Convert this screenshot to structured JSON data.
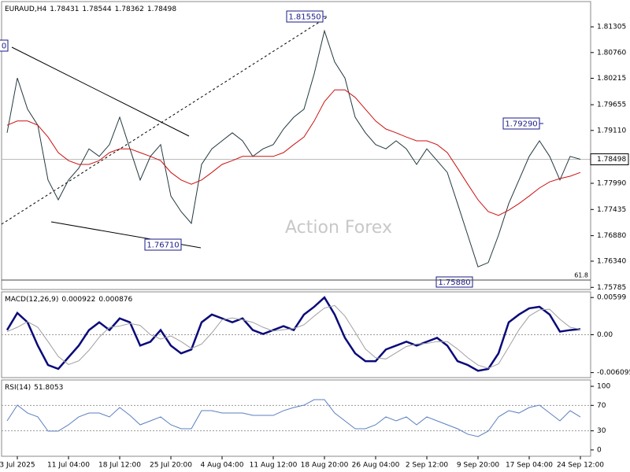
{
  "watermark": "Action Forex",
  "chart_data": [
    {
      "type": "line",
      "title": "EURAUD,H4",
      "ohlc": [
        1.78431,
        1.78544,
        1.78362,
        1.78498
      ],
      "categories": [
        null,
        "3 Jul 2025",
        null,
        null,
        null,
        null,
        "11 Jul 04:00",
        null,
        null,
        null,
        null,
        "18 Jul 12:00",
        null,
        null,
        null,
        null,
        "25 Jul 20:00",
        null,
        null,
        null,
        null,
        "4 Aug 04:00",
        null,
        null,
        null,
        null,
        "11 Aug 12:00",
        null,
        null,
        null,
        null,
        "18 Aug 20:00",
        null,
        null,
        null,
        null,
        "26 Aug 04:00",
        null,
        null,
        null,
        null,
        "2 Sep 12:00",
        null,
        null,
        null,
        null,
        "9 Sep 20:00",
        null,
        null,
        null,
        null,
        "17 Sep 04:00",
        null,
        null,
        null,
        null,
        "24 Sep 12:00"
      ],
      "series": [
        {
          "color": "#23393f",
          "values": [
            1.7906,
            1.8022,
            1.7956,
            1.7922,
            1.7806,
            1.7764,
            1.7806,
            1.7831,
            1.7872,
            1.7856,
            1.7881,
            1.7939,
            1.7872,
            1.7806,
            1.7856,
            1.7881,
            1.7772,
            1.7739,
            1.7714,
            1.7839,
            1.7872,
            1.7889,
            1.7906,
            1.7889,
            1.7856,
            1.7872,
            1.7881,
            1.7914,
            1.7939,
            1.7956,
            1.8031,
            1.8122,
            1.8056,
            1.8022,
            1.7939,
            1.7906,
            1.7881,
            1.7872,
            1.7889,
            1.7872,
            1.7839,
            1.7872,
            1.7847,
            1.7822,
            1.7756,
            1.7689,
            1.7622,
            1.7631,
            1.7689,
            1.7756,
            1.7806,
            1.7856,
            1.7889,
            1.7856,
            1.7806,
            1.7856,
            1.78498
          ]
        },
        {
          "color": "#cc1111",
          "values": [
            1.7922,
            1.7931,
            1.7931,
            1.7922,
            1.7897,
            1.7864,
            1.7847,
            1.7839,
            1.7839,
            1.7847,
            1.7864,
            1.7872,
            1.7872,
            1.7864,
            1.7856,
            1.7847,
            1.7822,
            1.7806,
            1.7797,
            1.7806,
            1.7822,
            1.7839,
            1.7847,
            1.7856,
            1.7856,
            1.7856,
            1.7856,
            1.7864,
            1.7881,
            1.7897,
            1.7931,
            1.7972,
            1.7997,
            1.7997,
            1.7981,
            1.7956,
            1.7931,
            1.7914,
            1.7906,
            1.7897,
            1.7889,
            1.7889,
            1.7881,
            1.7864,
            1.7831,
            1.7797,
            1.7764,
            1.7739,
            1.7731,
            1.7742,
            1.7756,
            1.7772,
            1.7789,
            1.7802,
            1.7809,
            1.7814,
            1.7822
          ]
        }
      ],
      "ylim": [
        1.7574,
        1.8184
      ],
      "yticks": [
        1.81305,
        {
          "value": 1.8076,
          "label": "1.80760"
        },
        1.80215,
        1.79655,
        {
          "value": 1.7911,
          "label": "1.79110"
        },
        {
          "value": 1.7799,
          "label": "1.77990"
        },
        1.77435,
        {
          "value": 1.7688,
          "label": "1.76880"
        },
        {
          "value": 1.7634,
          "label": "1.76340"
        },
        1.75785
      ],
      "current_price": 1.78498,
      "fib_label": "61.8",
      "fib_level": 1.7594,
      "annotations": [
        "1.81550",
        "1.76710",
        "1.75880",
        "1.79290",
        "0"
      ]
    },
    {
      "type": "line",
      "title": "MACD(12,26,9)",
      "header_values": [
        0.000922,
        0.000876
      ],
      "series": [
        {
          "color": "#0a0a7a",
          "values": [
            0.00075,
            0.0035,
            0.002,
            -0.00175,
            -0.004875,
            -0.0055,
            -0.003625,
            -0.00175,
            0.00075,
            0.002,
            0.00075,
            0.002625,
            0.002,
            -0.00175,
            -0.001125,
            0.00075,
            -0.00175,
            -0.003,
            -0.002375,
            0.002,
            0.00325,
            0.002625,
            0.002,
            0.002625,
            0.00075,
            0.000125,
            0.00075,
            0.001375,
            0.00075,
            0.00325,
            0.0045,
            0.006,
            0.00325,
            -0.0005,
            -0.003,
            -0.00425,
            -0.00425,
            -0.002375,
            -0.00175,
            -0.001125,
            -0.00175,
            -0.001125,
            -0.0005,
            -0.00175,
            -0.00425,
            -0.004875,
            -0.0058,
            -0.0055,
            -0.003,
            0.002,
            0.00325,
            0.00425,
            0.0045,
            0.00325,
            0.0005,
            0.00075,
            0.000922
          ]
        },
        {
          "color": "#a0a0a0",
          "values": [
            0.0005,
            0.0012,
            0.0021,
            0.0012,
            -0.0011,
            -0.0035,
            -0.0048,
            -0.0042,
            -0.0025,
            -0.0004,
            0.0012,
            0.0014,
            0.0018,
            0.0015,
            0.0,
            -0.0007,
            -0.0002,
            -0.0011,
            -0.0022,
            -0.0015,
            0.0003,
            0.0024,
            0.0027,
            0.0024,
            0.002,
            0.0012,
            0.0006,
            0.0008,
            0.001,
            0.0016,
            0.003,
            0.0043,
            0.0047,
            0.003,
            0.0004,
            -0.0023,
            -0.0037,
            -0.0039,
            -0.0029,
            -0.0019,
            -0.0015,
            -0.0014,
            -0.0011,
            -0.0011,
            -0.0023,
            -0.0037,
            -0.0049,
            -0.0054,
            -0.0047,
            -0.002,
            0.0008,
            0.003,
            0.004,
            0.0041,
            0.0025,
            0.0012,
            0.000876
          ]
        }
      ],
      "ylim": [
        -0.0069,
        0.0069
      ],
      "yticks": [
        0.00599,
        {
          "value": 0,
          "label": "0.00"
        },
        -0.006095
      ],
      "level_lines": true
    },
    {
      "type": "line",
      "title": "RSI(14)",
      "header_values": [
        51.8053
      ],
      "series": [
        {
          "color": "#5b7fbf",
          "values": [
            45.7,
            70.4,
            58,
            51.9,
            29.6,
            29.6,
            39.5,
            51.9,
            58,
            58,
            51.9,
            66.7,
            54.3,
            39.5,
            45.7,
            51.9,
            39.5,
            33.3,
            33.3,
            61.7,
            61.7,
            58,
            58,
            58,
            54.3,
            54.3,
            54.3,
            61.7,
            66.7,
            70.4,
            79,
            79,
            58,
            45.7,
            33.3,
            33.3,
            39.5,
            51.9,
            45.7,
            51.9,
            39.5,
            51.9,
            45.7,
            39.5,
            33.3,
            24.7,
            21,
            29.6,
            51.9,
            61.7,
            58,
            66.7,
            70.4,
            58,
            45.7,
            61.7,
            51.8053
          ]
        }
      ],
      "ylim": [
        -10,
        110
      ],
      "yticks": [
        100,
        70,
        30,
        0
      ],
      "level_lines": true
    }
  ]
}
